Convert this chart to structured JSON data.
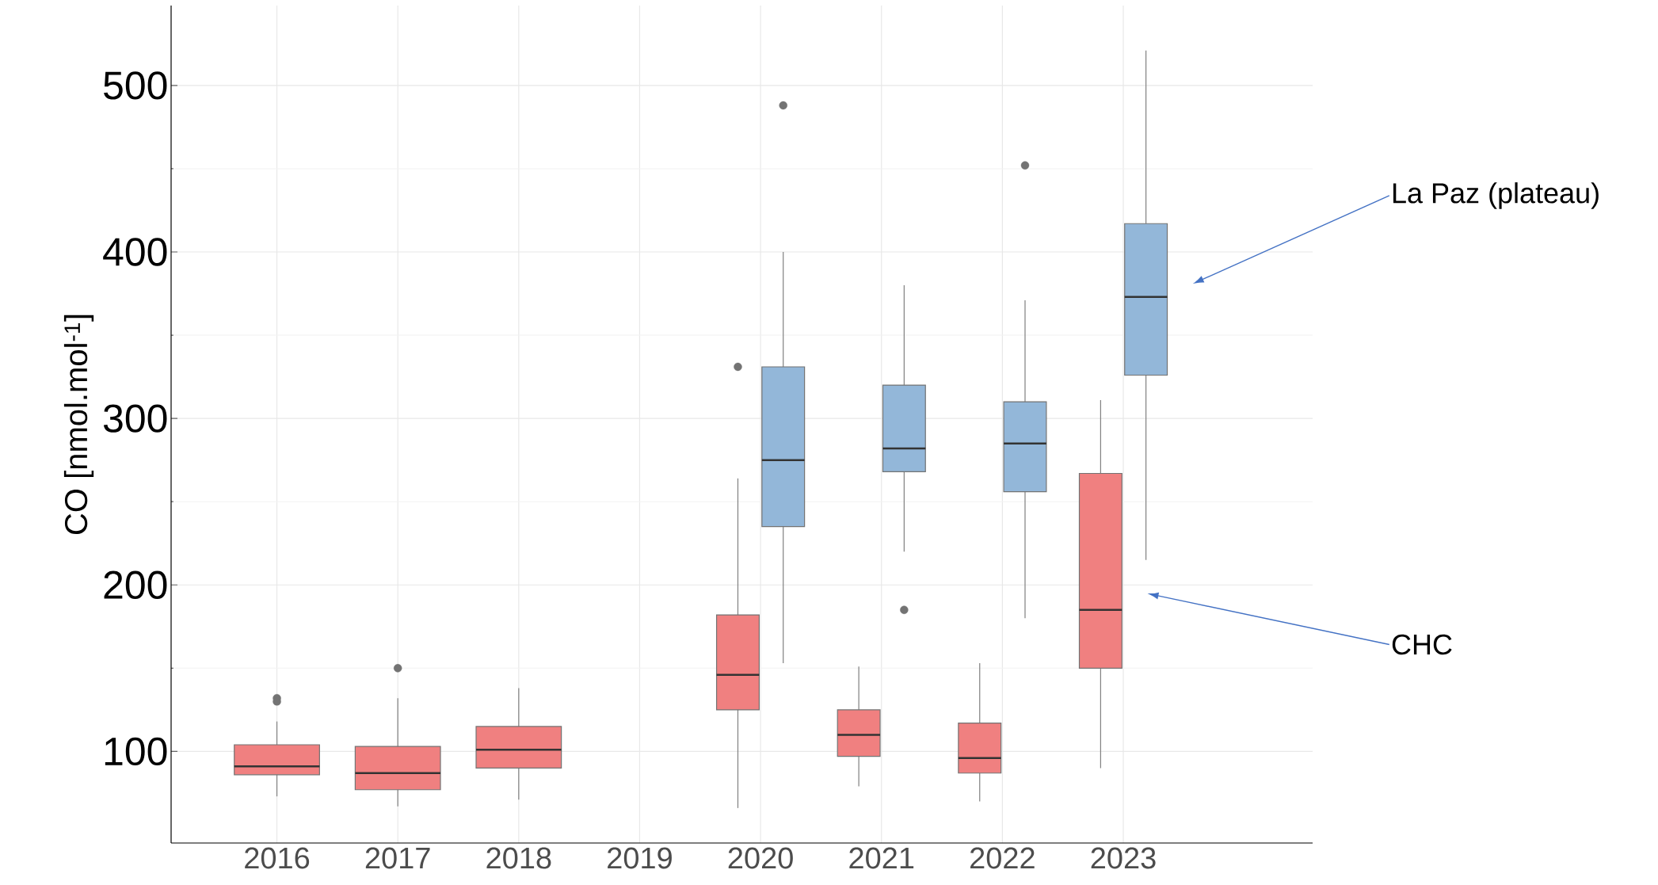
{
  "chart_data": {
    "type": "box",
    "ylabel": "CO [nmol.mol$^{-1}$]",
    "categories": [
      "2016",
      "2017",
      "2018",
      "2019",
      "2020",
      "2021",
      "2022",
      "2023"
    ],
    "ylim": [
      45,
      548
    ],
    "yticks": [
      100,
      200,
      300,
      400,
      500
    ],
    "grid": true,
    "series": [
      {
        "name": "CHC",
        "color": "#f08080",
        "boxes": [
          {
            "low": 73,
            "q1": 86,
            "median": 91,
            "q3": 104,
            "high": 118,
            "outliers": [
              132,
              130
            ]
          },
          {
            "low": 67,
            "q1": 77,
            "median": 87,
            "q3": 103,
            "high": 132,
            "outliers": [
              150
            ]
          },
          {
            "low": 71,
            "q1": 90,
            "median": 101,
            "q3": 115,
            "high": 138
          },
          null,
          {
            "low": 66,
            "q1": 125,
            "median": 146,
            "q3": 182,
            "high": 264,
            "outliers": [
              331
            ]
          },
          {
            "low": 79,
            "q1": 97,
            "median": 110,
            "q3": 125,
            "high": 151
          },
          {
            "low": 70,
            "q1": 87,
            "median": 96,
            "q3": 117,
            "high": 153
          },
          {
            "low": 90,
            "q1": 150,
            "median": 185,
            "q3": 267,
            "high": 311
          }
        ]
      },
      {
        "name": "La Paz (plateau)",
        "color": "#93b7d9",
        "boxes": [
          null,
          null,
          null,
          null,
          {
            "low": 153,
            "q1": 235,
            "median": 275,
            "q3": 331,
            "high": 400,
            "outliers": [
              488
            ]
          },
          {
            "low": 220,
            "q1": 268,
            "median": 282,
            "q3": 320,
            "high": 380,
            "outliers": [
              185
            ]
          },
          {
            "low": 180,
            "q1": 256,
            "median": 285,
            "q3": 310,
            "high": 371,
            "outliers": [
              452
            ]
          },
          {
            "low": 215,
            "q1": 326,
            "median": 373,
            "q3": 417,
            "high": 521
          }
        ]
      }
    ]
  }
}
